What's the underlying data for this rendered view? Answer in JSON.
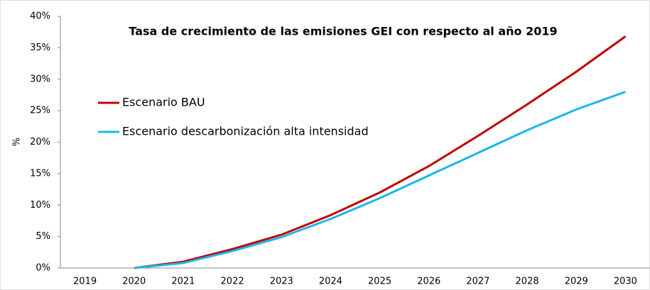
{
  "chart_data": {
    "type": "line",
    "title": "Tasa de crecimiento de las emisiones GEI con respecto al año 2019",
    "y_label": "%",
    "categories": [
      "2019",
      "2020",
      "2021",
      "2022",
      "2023",
      "2024",
      "2025",
      "2026",
      "2027",
      "2028",
      "2029",
      "2030"
    ],
    "series": [
      {
        "name": "Escenario BAU",
        "color": "#c00000",
        "values": [
          null,
          0,
          1,
          3,
          5.3,
          8.4,
          12,
          16.2,
          21,
          26,
          31.2,
          36.8
        ]
      },
      {
        "name": "Escenario descarbonización alta intensidad",
        "color": "#1ab7ea",
        "values": [
          null,
          0,
          0.8,
          2.7,
          4.9,
          7.8,
          11.1,
          14.7,
          18.3,
          21.9,
          25.2,
          28
        ]
      }
    ],
    "ylim": [
      0,
      40
    ],
    "yticks": [
      {
        "value": 0,
        "label": "0%"
      },
      {
        "value": 5,
        "label": "5%"
      },
      {
        "value": 10,
        "label": "10%"
      },
      {
        "value": 15,
        "label": "15%"
      },
      {
        "value": 20,
        "label": "20%"
      },
      {
        "value": 25,
        "label": "25%"
      },
      {
        "value": 30,
        "label": "30%"
      },
      {
        "value": 35,
        "label": "35%"
      },
      {
        "value": 40,
        "label": "40%"
      }
    ],
    "grid": false,
    "legend": "upper left"
  }
}
